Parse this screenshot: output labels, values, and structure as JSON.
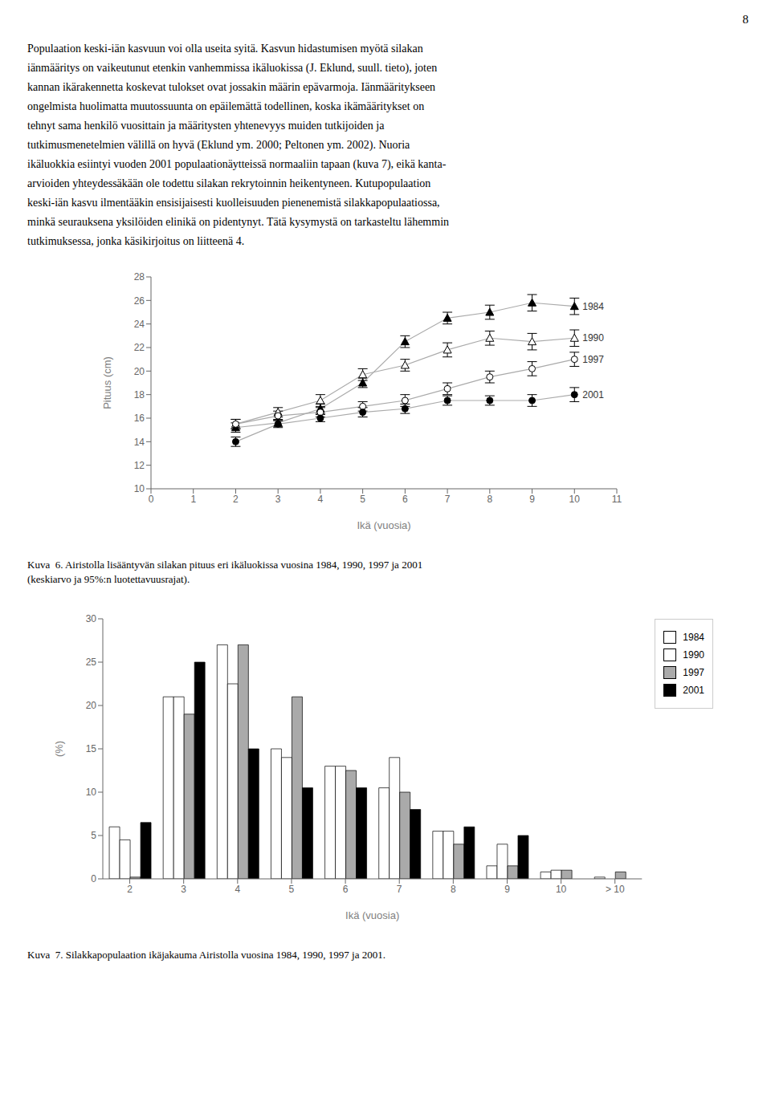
{
  "chart_data": [
    {
      "type": "line",
      "title": "Kuva  6. Airistolla lisääntyvän silakan pituus eri ikäluokissa vuosina 1984, 1990, 1997 ja 2001",
      "subtitle": "(keskiarvo ja 95%:n luotettavuusrajat).",
      "annotations": [
        "8",
        "Populaation keski-iän kasvuun voi olla useita syitä. Kasvun hidastumisen myötä silakan",
        "iänmääritys on vaikeutunut etenkin vanhemmissa ikäluokissa (J. Eklund, suull. tieto), joten",
        "kannan ikärakennetta koskevat tulokset ovat jossakin määrin epävarmoja. Iänmääritykseen",
        "ongelmista huolimatta muutossuunta on epäilemättä todellinen, koska ikämääritykset on",
        "tehnyt sama henkilö vuosittain ja määritysten yhtenevyys muiden tutkijoiden ja",
        "tutkimusmenetelmien välillä on hyvä (Eklund ym. 2000; Peltonen ym. 2002). Nuoria",
        "ikäluokkia esiintyi vuoden 2001 populaationäytteissä normaaliin tapaan (kuva 7), eikä kanta-",
        "arvioiden yhteydessäkään ole todettu silakan rekrytoinnin heikentyneen. Kutupopulaation",
        "keski-iän kasvu ilmentääkin ensisijaisesti kuolleisuuden pienenemistä silakkapopulaatiossa,",
        "minkä seurauksena yksilöiden elinikä on pidentynyt. Tätä kysymystä on tarkasteltu lähemmin",
        "tutkimuksessa, jonka käsikirjoitus on liitteenä 4."
      ],
      "xlabel": "Ikä (vuosia)",
      "ylabel": "Pituus (cm)",
      "x": [
        2,
        3,
        4,
        5,
        6,
        7,
        8,
        9,
        10
      ],
      "xlim": [
        0,
        11
      ],
      "xticks": [
        0,
        1,
        2,
        3,
        4,
        5,
        6,
        7,
        8,
        9,
        10,
        11
      ],
      "ylim": [
        10,
        28
      ],
      "yticks": [
        10,
        12,
        14,
        16,
        18,
        20,
        22,
        24,
        26,
        28
      ],
      "grid": false,
      "series": [
        {
          "name": "1984",
          "color": "#aaaaaa",
          "marker": "triangle",
          "values": [
            15.2,
            15.6,
            16.8,
            19.0,
            22.5,
            24.5,
            25.0,
            25.8,
            25.5
          ],
          "errors": [
            0.4,
            0.3,
            0.4,
            0.4,
            0.5,
            0.5,
            0.6,
            0.7,
            0.7
          ]
        },
        {
          "name": "1990",
          "color": "#aaaaaa",
          "marker": "triangle-open",
          "values": [
            15.5,
            16.5,
            17.5,
            19.7,
            20.5,
            21.8,
            22.8,
            22.5,
            22.8
          ],
          "errors": [
            0.4,
            0.4,
            0.5,
            0.5,
            0.5,
            0.6,
            0.6,
            0.7,
            0.7
          ]
        },
        {
          "name": "1997",
          "color": "#aaaaaa",
          "marker": "circle-open",
          "values": [
            15.5,
            16.2,
            16.5,
            17.0,
            17.5,
            18.5,
            19.5,
            20.2,
            21.0
          ],
          "errors": [
            0.4,
            0.4,
            0.4,
            0.4,
            0.5,
            0.5,
            0.5,
            0.6,
            0.6
          ]
        },
        {
          "name": "2001",
          "color": "#aaaaaa",
          "marker": "circle",
          "values": [
            14.0,
            15.5,
            16.0,
            16.5,
            16.8,
            17.5,
            17.5,
            17.5,
            18.0
          ],
          "errors": [
            0.4,
            0.3,
            0.3,
            0.4,
            0.4,
            0.4,
            0.4,
            0.5,
            0.6
          ]
        }
      ]
    },
    {
      "type": "bar",
      "title": "Kuva  7. Silakkapopulaation ikäjakauma Airistolla vuosina 1984, 1990, 1997 ja 2001.",
      "xlabel": "Ikä (vuosia)",
      "ylabel": "(%)",
      "categories": [
        "2",
        "3",
        "4",
        "5",
        "6",
        "7",
        "8",
        "9",
        "10",
        "> 10"
      ],
      "ylim": [
        0,
        30
      ],
      "yticks": [
        0,
        5,
        10,
        15,
        20,
        25,
        30
      ],
      "grid": false,
      "legend": "upper right",
      "series": [
        {
          "name": "1984",
          "color": "#ffffff",
          "values": [
            6.0,
            21.0,
            27.0,
            15.0,
            13.0,
            10.5,
            5.5,
            1.5,
            0.8,
            0.2
          ]
        },
        {
          "name": "1990",
          "color": "#ffffff",
          "values": [
            4.5,
            21.0,
            22.5,
            14.0,
            13.0,
            14.0,
            5.5,
            4.0,
            1.0,
            0.0
          ]
        },
        {
          "name": "1997",
          "color": "#aaaaaa",
          "values": [
            0.2,
            19.0,
            27.0,
            21.0,
            12.5,
            10.0,
            4.0,
            1.5,
            1.0,
            0.8
          ]
        },
        {
          "name": "2001",
          "color": "#000000",
          "values": [
            6.5,
            25.0,
            15.0,
            10.5,
            10.5,
            8.0,
            6.0,
            5.0,
            0.0,
            0.0
          ]
        }
      ]
    }
  ]
}
